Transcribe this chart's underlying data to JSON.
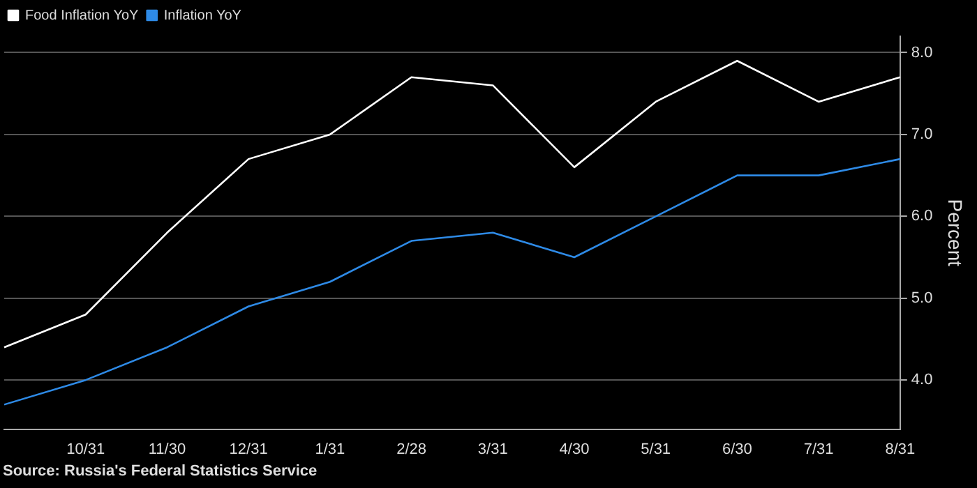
{
  "chart_data": {
    "type": "line",
    "ylabel": "Percent",
    "annotations": [
      "Source: Russia's Federal Statistics Service"
    ],
    "categories": [
      null,
      "10/31",
      "11/30",
      "12/31",
      "1/31",
      "2/28",
      "3/31",
      "4/30",
      "5/31",
      "6/30",
      "7/31",
      "8/31"
    ],
    "series": [
      {
        "name": "Food Inflation YoY",
        "color": "#ffffff",
        "values": [
          4.4,
          4.8,
          5.8,
          6.7,
          7.0,
          7.7,
          7.6,
          6.6,
          7.4,
          7.9,
          7.4,
          7.7
        ]
      },
      {
        "name": "Inflation YoY",
        "color": "#2e8ae6",
        "values": [
          3.7,
          4.0,
          4.4,
          4.9,
          5.2,
          5.7,
          5.8,
          5.5,
          6.0,
          6.5,
          6.5,
          6.7
        ]
      }
    ],
    "ylim": [
      3.4,
      8.2
    ],
    "yticks": [
      {
        "value": 4,
        "label": "4.0"
      },
      {
        "value": 5,
        "label": "5.0"
      },
      {
        "value": 6,
        "label": "6.0"
      },
      {
        "value": 7,
        "label": "7.0"
      },
      {
        "value": 8,
        "label": "8.0"
      }
    ],
    "grid": "y",
    "legend": "top left",
    "marker": "none",
    "line_style": "solid"
  }
}
